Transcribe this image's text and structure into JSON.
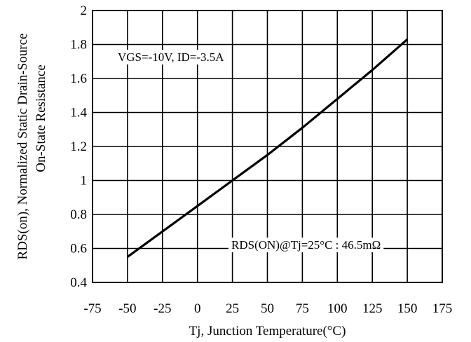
{
  "chart_data": {
    "type": "line",
    "xlabel": "Tj, Junction Temperature(°C)",
    "ylabel_line1": "RDS(on), Normalized Static Drain-Source",
    "ylabel_line2": "On-State Resistance",
    "xlim": [
      -75,
      175
    ],
    "ylim": [
      0.4,
      2
    ],
    "x_ticks": [
      -75,
      -50,
      -25,
      0,
      25,
      50,
      75,
      100,
      125,
      150,
      175
    ],
    "y_ticks": [
      0.4,
      0.6,
      0.8,
      1,
      1.2,
      1.4,
      1.6,
      1.8,
      2
    ],
    "x_tick_labels": [
      "-75",
      "-50",
      "-25",
      "0",
      "25",
      "50",
      "75",
      "100",
      "125",
      "150",
      "175"
    ],
    "y_tick_labels": [
      "0.4",
      "0.6",
      "0.8",
      "1",
      "1.2",
      "1.4",
      "1.6",
      "1.8",
      "2"
    ],
    "grid": true,
    "series": [
      {
        "x": [
          -50,
          -25,
          0,
          25,
          50,
          75,
          100,
          125,
          150
        ],
        "y": [
          0.55,
          0.7,
          0.85,
          1.0,
          1.15,
          1.31,
          1.48,
          1.65,
          1.83
        ],
        "color": "#000000"
      }
    ],
    "annotations": {
      "conditions": "VGS=-10V, ID=-3.5A",
      "rds_ref": "RDS(ON)@Tj=25°C : 46.5mΩ"
    }
  }
}
